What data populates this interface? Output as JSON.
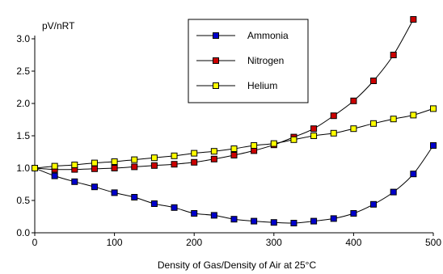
{
  "chart_data": {
    "type": "line",
    "title": "",
    "ylabel": "pV/nRT",
    "xlabel": "Density of Gas/Density of Air at 25°C",
    "xlim": [
      0,
      500
    ],
    "ylim": [
      0,
      3.0
    ],
    "x_ticks": [
      0,
      100,
      200,
      300,
      400,
      500
    ],
    "x_tick_labels": [
      "0",
      "100",
      "200",
      "300",
      "400",
      "500"
    ],
    "y_ticks": [
      0,
      0.5,
      1.0,
      1.5,
      2.0,
      2.5,
      3.0
    ],
    "y_tick_labels": [
      "0.0",
      "0.5",
      "1.0",
      "1.5",
      "2.0",
      "2.5",
      "3.0"
    ],
    "grid": false,
    "legend_position": "top-center",
    "series": [
      {
        "name": "Ammonia",
        "color": "#0000cc",
        "marker": "square",
        "x": [
          0,
          25,
          50,
          75,
          100,
          125,
          150,
          175,
          200,
          225,
          250,
          275,
          300,
          325,
          350,
          375,
          400,
          425,
          450,
          475,
          500
        ],
        "y": [
          1.0,
          0.88,
          0.79,
          0.71,
          0.62,
          0.55,
          0.45,
          0.39,
          0.3,
          0.27,
          0.21,
          0.18,
          0.16,
          0.15,
          0.18,
          0.22,
          0.3,
          0.44,
          0.63,
          0.91,
          1.35
        ]
      },
      {
        "name": "Nitrogen",
        "color": "#cc0000",
        "marker": "square",
        "x": [
          0,
          25,
          50,
          75,
          100,
          125,
          150,
          175,
          200,
          225,
          250,
          275,
          300,
          325,
          350,
          375,
          400,
          425,
          450,
          475
        ],
        "y": [
          1.0,
          0.98,
          0.98,
          0.99,
          1.0,
          1.02,
          1.04,
          1.06,
          1.09,
          1.14,
          1.2,
          1.27,
          1.36,
          1.48,
          1.61,
          1.81,
          2.04,
          2.35,
          2.75,
          3.3
        ]
      },
      {
        "name": "Helium",
        "color": "#ffff00",
        "marker": "square",
        "x": [
          0,
          25,
          50,
          75,
          100,
          125,
          150,
          175,
          200,
          225,
          250,
          275,
          300,
          325,
          350,
          375,
          400,
          425,
          450,
          475,
          500
        ],
        "y": [
          1.0,
          1.03,
          1.05,
          1.08,
          1.1,
          1.13,
          1.16,
          1.19,
          1.23,
          1.26,
          1.3,
          1.35,
          1.38,
          1.44,
          1.5,
          1.54,
          1.61,
          1.69,
          1.76,
          1.82,
          1.92
        ]
      }
    ]
  }
}
